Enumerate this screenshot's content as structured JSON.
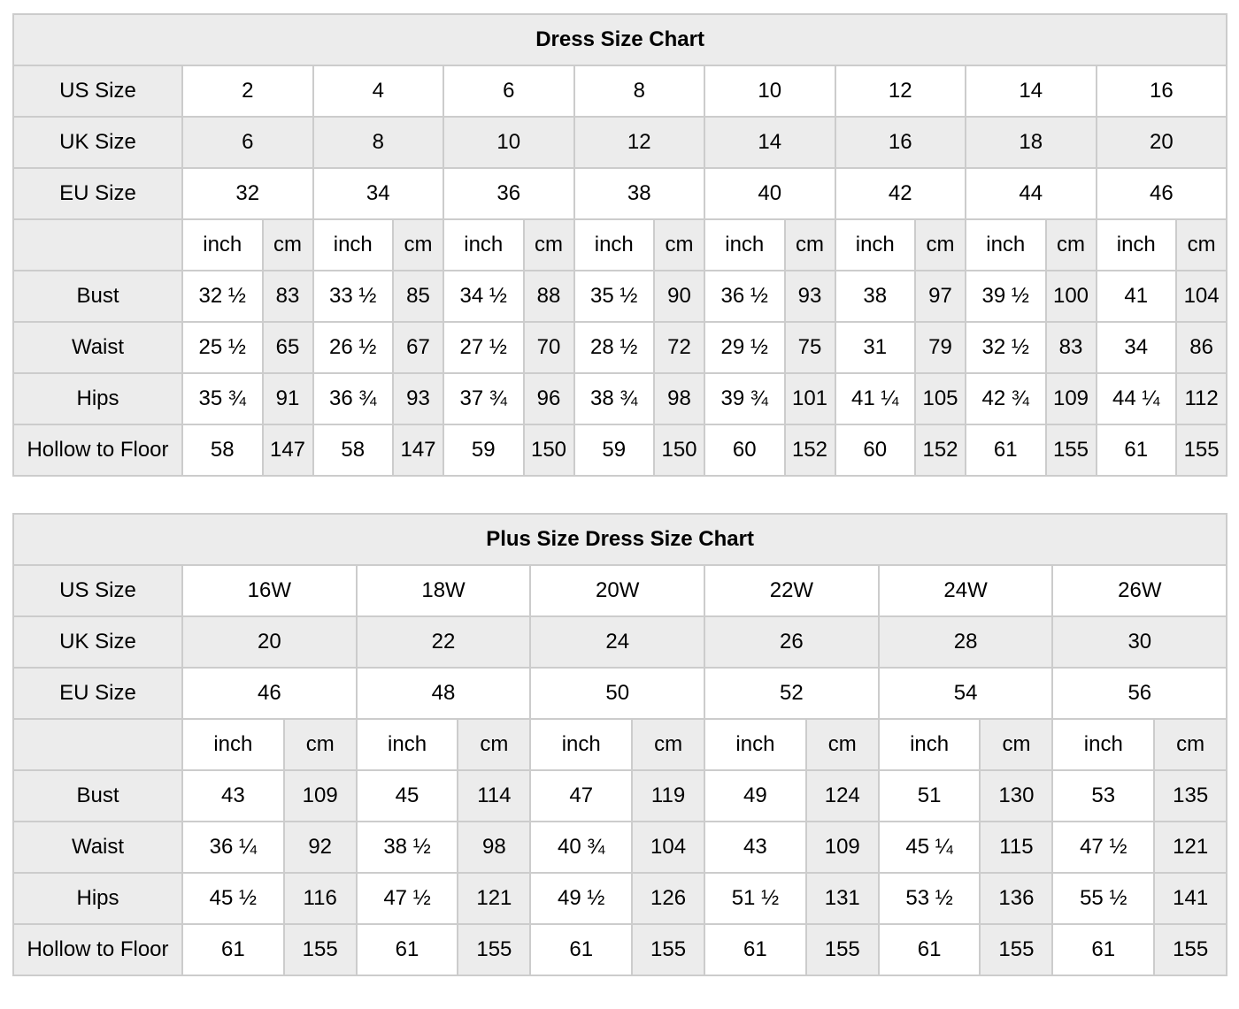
{
  "page": {
    "background": "#ffffff",
    "gray_cell_color": "#ececec",
    "border_color": "#cccccc",
    "text_color": "#000000"
  },
  "units": {
    "inch": "inch",
    "cm": "cm"
  },
  "tables": [
    {
      "title": "Dress Size Chart",
      "num_size_cols": 8,
      "size_rows": [
        {
          "label": "US Size",
          "values": [
            "2",
            "4",
            "6",
            "8",
            "10",
            "12",
            "14",
            "16"
          ]
        },
        {
          "label": "UK Size",
          "values": [
            "6",
            "8",
            "10",
            "12",
            "14",
            "16",
            "18",
            "20"
          ]
        },
        {
          "label": "EU Size",
          "values": [
            "32",
            "34",
            "36",
            "38",
            "40",
            "42",
            "44",
            "46"
          ]
        }
      ],
      "measure_rows": [
        {
          "label": "Bust",
          "values": [
            "32 ½",
            "83",
            "33 ½",
            "85",
            "34 ½",
            "88",
            "35 ½",
            "90",
            "36 ½",
            "93",
            "38",
            "97",
            "39 ½",
            "100",
            "41",
            "104"
          ]
        },
        {
          "label": "Waist",
          "values": [
            "25 ½",
            "65",
            "26 ½",
            "67",
            "27 ½",
            "70",
            "28 ½",
            "72",
            "29 ½",
            "75",
            "31",
            "79",
            "32 ½",
            "83",
            "34",
            "86"
          ]
        },
        {
          "label": "Hips",
          "values": [
            "35 ¾",
            "91",
            "36 ¾",
            "93",
            "37 ¾",
            "96",
            "38 ¾",
            "98",
            "39 ¾",
            "101",
            "41 ¼",
            "105",
            "42 ¾",
            "109",
            "44 ¼",
            "112"
          ]
        },
        {
          "label": "Hollow to Floor",
          "values": [
            "58",
            "147",
            "58",
            "147",
            "59",
            "150",
            "59",
            "150",
            "60",
            "152",
            "60",
            "152",
            "61",
            "155",
            "61",
            "155"
          ]
        }
      ]
    },
    {
      "title": "Plus Size Dress Size Chart",
      "num_size_cols": 6,
      "size_rows": [
        {
          "label": "US Size",
          "values": [
            "16W",
            "18W",
            "20W",
            "22W",
            "24W",
            "26W"
          ]
        },
        {
          "label": "UK Size",
          "values": [
            "20",
            "22",
            "24",
            "26",
            "28",
            "30"
          ]
        },
        {
          "label": "EU Size",
          "values": [
            "46",
            "48",
            "50",
            "52",
            "54",
            "56"
          ]
        }
      ],
      "measure_rows": [
        {
          "label": "Bust",
          "values": [
            "43",
            "109",
            "45",
            "114",
            "47",
            "119",
            "49",
            "124",
            "51",
            "130",
            "53",
            "135"
          ]
        },
        {
          "label": "Waist",
          "values": [
            "36 ¼",
            "92",
            "38 ½",
            "98",
            "40 ¾",
            "104",
            "43",
            "109",
            "45 ¼",
            "115",
            "47 ½",
            "121"
          ]
        },
        {
          "label": "Hips",
          "values": [
            "45 ½",
            "116",
            "47 ½",
            "121",
            "49 ½",
            "126",
            "51 ½",
            "131",
            "53 ½",
            "136",
            "55 ½",
            "141"
          ]
        },
        {
          "label": "Hollow to Floor",
          "values": [
            "61",
            "155",
            "61",
            "155",
            "61",
            "155",
            "61",
            "155",
            "61",
            "155",
            "61",
            "155"
          ]
        }
      ]
    }
  ]
}
